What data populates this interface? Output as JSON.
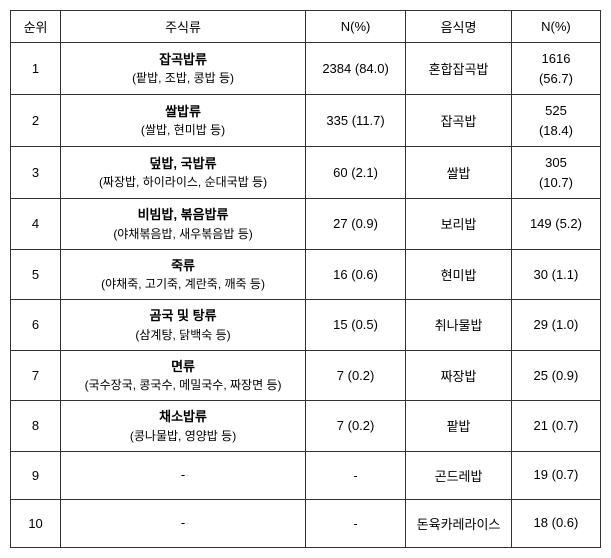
{
  "headers": {
    "rank": "순위",
    "category": "주식류",
    "n1": "N(%)",
    "food": "음식명",
    "n2": "N(%)"
  },
  "rows": [
    {
      "rank": "1",
      "cat_main": "잡곡밥류",
      "cat_sub": "(팥밥, 조밥, 콩밥 등)",
      "n1": "2384 (84.0)",
      "food": "혼합잡곡밥",
      "n2_line1": "1616",
      "n2_line2": "(56.7)"
    },
    {
      "rank": "2",
      "cat_main": "쌀밥류",
      "cat_sub": "(쌀밥, 현미밥 등)",
      "n1": "335 (11.7)",
      "food": "잡곡밥",
      "n2_line1": "525",
      "n2_line2": "(18.4)"
    },
    {
      "rank": "3",
      "cat_main": "덮밥, 국밥류",
      "cat_sub": "(짜장밥, 하이라이스, 순대국밥 등)",
      "n1": "60 (2.1)",
      "food": "쌀밥",
      "n2_line1": "305",
      "n2_line2": "(10.7)"
    },
    {
      "rank": "4",
      "cat_main": "비빔밥, 볶음밥류",
      "cat_sub": "(야채볶음밥, 새우볶음밥 등)",
      "n1": "27 (0.9)",
      "food": "보리밥",
      "n2_line1": "149 (5.2)",
      "n2_line2": ""
    },
    {
      "rank": "5",
      "cat_main": "죽류",
      "cat_sub": "(야채죽, 고기죽, 계란죽, 깨죽 등)",
      "n1": "16 (0.6)",
      "food": "현미밥",
      "n2_line1": "30 (1.1)",
      "n2_line2": ""
    },
    {
      "rank": "6",
      "cat_main": "곰국 및 탕류",
      "cat_sub": "(삼계탕, 닭백숙 등)",
      "n1": "15 (0.5)",
      "food": "취나물밥",
      "n2_line1": "29 (1.0)",
      "n2_line2": ""
    },
    {
      "rank": "7",
      "cat_main": "면류",
      "cat_sub": "(국수장국, 콩국수, 메밀국수, 짜장면 등)",
      "n1": "7 (0.2)",
      "food": "짜장밥",
      "n2_line1": "25 (0.9)",
      "n2_line2": ""
    },
    {
      "rank": "8",
      "cat_main": "채소밥류",
      "cat_sub": "(콩나물밥, 영양밥 등)",
      "n1": "7 (0.2)",
      "food": "팥밥",
      "n2_line1": "21 (0.7)",
      "n2_line2": ""
    },
    {
      "rank": "9",
      "cat_main": "-",
      "cat_sub": "",
      "n1": "-",
      "food": "곤드레밥",
      "n2_line1": "19 (0.7)",
      "n2_line2": ""
    },
    {
      "rank": "10",
      "cat_main": "-",
      "cat_sub": "",
      "n1": "-",
      "food": "돈육카레라이스",
      "n2_line1": "18 (0.6)",
      "n2_line2": ""
    }
  ]
}
